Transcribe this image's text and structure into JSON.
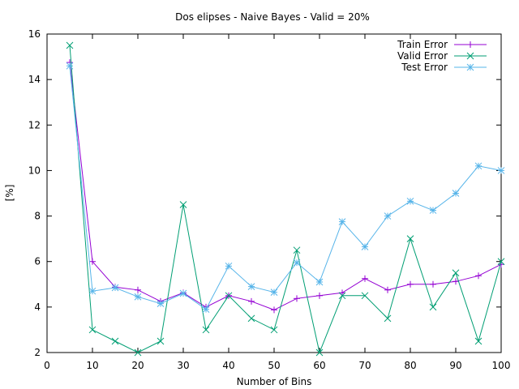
{
  "chart_data": {
    "type": "line",
    "title": "Dos elipses - Naive Bayes - Valid = 20%",
    "xlabel": "Number of Bins",
    "ylabel": "[%]",
    "xlim": [
      0,
      100
    ],
    "ylim": [
      2,
      16
    ],
    "xticks": [
      0,
      10,
      20,
      30,
      40,
      50,
      60,
      70,
      80,
      90,
      100
    ],
    "yticks": [
      2,
      4,
      6,
      8,
      10,
      12,
      14,
      16
    ],
    "grid": false,
    "legend_position": "top-right",
    "x": [
      5,
      10,
      15,
      20,
      25,
      30,
      35,
      40,
      45,
      50,
      55,
      60,
      65,
      70,
      75,
      80,
      85,
      90,
      95,
      100
    ],
    "series": [
      {
        "name": "Train Error",
        "color": "#9400d3",
        "marker": "plus",
        "values": [
          14.75,
          6.0,
          4.875,
          4.75,
          4.25,
          4.625,
          4.0,
          4.5,
          4.25,
          3.875,
          4.375,
          4.5,
          4.625,
          5.25,
          4.75,
          5.0,
          5.0,
          5.125,
          5.375,
          5.875
        ]
      },
      {
        "name": "Valid Error",
        "color": "#009e73",
        "marker": "cross",
        "values": [
          15.5,
          3.0,
          2.5,
          2.0,
          2.5,
          8.5,
          3.0,
          4.5,
          3.5,
          3.0,
          6.5,
          2.0,
          4.5,
          4.5,
          3.5,
          7.0,
          4.0,
          5.5,
          2.5,
          6.0
        ]
      },
      {
        "name": "Test Error",
        "color": "#56b4e9",
        "marker": "star",
        "values": [
          14.6,
          4.7,
          4.85,
          4.45,
          4.15,
          4.6,
          3.9,
          5.8,
          4.9,
          4.65,
          5.95,
          5.1,
          7.75,
          6.65,
          8.0,
          8.65,
          8.25,
          9.0,
          10.2,
          10.0
        ]
      }
    ]
  }
}
